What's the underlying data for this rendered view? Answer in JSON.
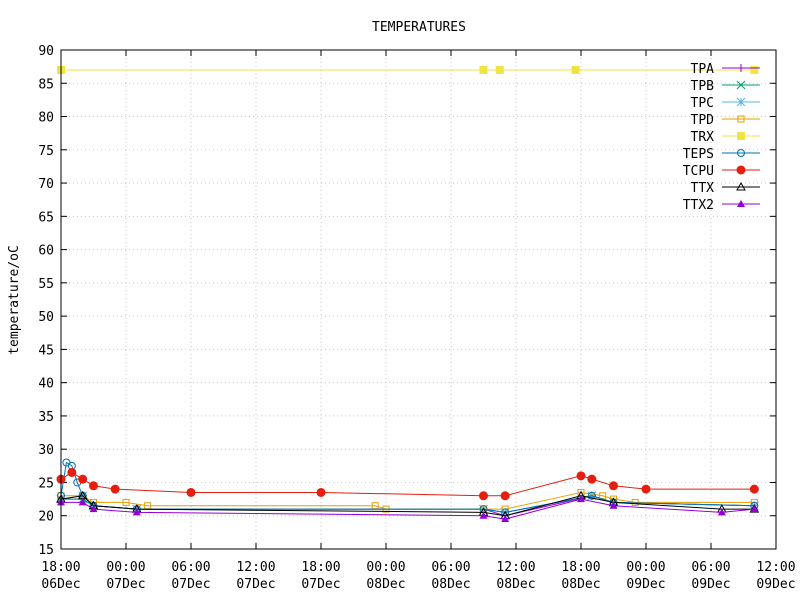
{
  "chart_data": {
    "type": "line",
    "title": "TEMPERATURES",
    "xlabel": "",
    "ylabel": "temperature/oC",
    "ylim": [
      15,
      90
    ],
    "yticks": [
      15,
      20,
      25,
      30,
      35,
      40,
      45,
      50,
      55,
      60,
      65,
      70,
      75,
      80,
      85,
      90
    ],
    "xlim": [
      "2023-12-06 18:00",
      "2023-12-09 12:00"
    ],
    "xticks": [
      {
        "time": "06Dec 18:00",
        "line1": "18:00",
        "line2": "06Dec"
      },
      {
        "time": "07Dec 00:00",
        "line1": "00:00",
        "line2": "07Dec"
      },
      {
        "time": "07Dec 06:00",
        "line1": "06:00",
        "line2": "07Dec"
      },
      {
        "time": "07Dec 12:00",
        "line1": "12:00",
        "line2": "07Dec"
      },
      {
        "time": "07Dec 18:00",
        "line1": "18:00",
        "line2": "07Dec"
      },
      {
        "time": "08Dec 00:00",
        "line1": "00:00",
        "line2": "08Dec"
      },
      {
        "time": "08Dec 06:00",
        "line1": "06:00",
        "line2": "08Dec"
      },
      {
        "time": "08Dec 12:00",
        "line1": "12:00",
        "line2": "08Dec"
      },
      {
        "time": "08Dec 18:00",
        "line1": "18:00",
        "line2": "08Dec"
      },
      {
        "time": "09Dec 00:00",
        "line1": "00:00",
        "line2": "09Dec"
      },
      {
        "time": "09Dec 06:00",
        "line1": "06:00",
        "line2": "09Dec"
      },
      {
        "time": "09Dec 12:00",
        "line1": "12:00",
        "line2": "09Dec"
      }
    ],
    "grid": true,
    "legend": "top-right",
    "series": [
      {
        "name": "TPA",
        "color": "#9400d3",
        "marker": "plus",
        "points": [
          [
            "06Dec 18:00",
            22.5
          ],
          [
            "06Dec 20:00",
            22.5
          ],
          [
            "06Dec 21:00",
            21.5
          ],
          [
            "07Dec 01:00",
            21.0
          ],
          [
            "08Dec 09:00",
            21.0
          ],
          [
            "08Dec 11:00",
            20.0
          ],
          [
            "08Dec 19:00",
            23.0
          ],
          [
            "08Dec 21:00",
            22.0
          ],
          [
            "09Dec 10:00",
            21.5
          ]
        ]
      },
      {
        "name": "TPB",
        "color": "#009e73",
        "marker": "x",
        "points": [
          [
            "06Dec 18:00",
            22.5
          ],
          [
            "06Dec 20:00",
            22.5
          ],
          [
            "06Dec 21:00",
            21.5
          ],
          [
            "07Dec 01:00",
            21.0
          ],
          [
            "08Dec 09:00",
            21.0
          ],
          [
            "08Dec 11:00",
            20.5
          ],
          [
            "08Dec 19:00",
            23.0
          ],
          [
            "08Dec 21:00",
            22.0
          ],
          [
            "09Dec 10:00",
            21.5
          ]
        ]
      },
      {
        "name": "TPC",
        "color": "#56b4e9",
        "marker": "star",
        "points": [
          [
            "06Dec 18:00",
            22.5
          ],
          [
            "06Dec 20:00",
            23.0
          ],
          [
            "06Dec 21:00",
            21.5
          ],
          [
            "07Dec 01:00",
            21.0
          ],
          [
            "08Dec 09:00",
            21.0
          ],
          [
            "08Dec 11:00",
            20.5
          ],
          [
            "08Dec 19:00",
            23.0
          ],
          [
            "08Dec 21:00",
            22.0
          ],
          [
            "09Dec 10:00",
            21.5
          ]
        ]
      },
      {
        "name": "TPD",
        "color": "#e69f00",
        "marker": "square",
        "points": [
          [
            "06Dec 18:00",
            23.0
          ],
          [
            "06Dec 20:00",
            23.0
          ],
          [
            "06Dec 21:00",
            22.0
          ],
          [
            "07Dec 00:00",
            22.0
          ],
          [
            "07Dec 02:00",
            21.5
          ],
          [
            "07Dec 23:00",
            21.5
          ],
          [
            "08Dec 00:00",
            21.0
          ],
          [
            "08Dec 09:00",
            21.0
          ],
          [
            "08Dec 11:00",
            21.0
          ],
          [
            "08Dec 18:00",
            23.5
          ],
          [
            "08Dec 20:00",
            23.0
          ],
          [
            "08Dec 21:00",
            22.5
          ],
          [
            "08Dec 23:00",
            22.0
          ],
          [
            "09Dec 10:00",
            22.0
          ]
        ]
      },
      {
        "name": "TRX",
        "color": "#f0e442",
        "marker": "filled-square",
        "points": [
          [
            "06Dec 18:00",
            87.0
          ],
          [
            "08Dec 09:00",
            87.0
          ],
          [
            "08Dec 10:30",
            87.0
          ],
          [
            "08Dec 17:30",
            87.0
          ],
          [
            "09Dec 10:00",
            87.0
          ]
        ]
      },
      {
        "name": "TEPS",
        "color": "#0072b2",
        "marker": "circle",
        "points": [
          [
            "06Dec 18:00",
            23.0
          ],
          [
            "06Dec 18:30",
            28.0
          ],
          [
            "06Dec 19:00",
            27.5
          ],
          [
            "06Dec 19:30",
            25.0
          ],
          [
            "06Dec 20:00",
            23.0
          ],
          [
            "06Dec 21:00",
            21.5
          ],
          [
            "07Dec 01:00",
            21.0
          ],
          [
            "08Dec 09:00",
            21.0
          ],
          [
            "08Dec 11:00",
            20.5
          ],
          [
            "08Dec 19:00",
            23.0
          ],
          [
            "08Dec 21:00",
            22.0
          ],
          [
            "09Dec 10:00",
            21.5
          ]
        ]
      },
      {
        "name": "TCPU",
        "color": "#e51e10",
        "marker": "filled-circle",
        "points": [
          [
            "06Dec 18:00",
            25.5
          ],
          [
            "06Dec 19:00",
            26.5
          ],
          [
            "06Dec 20:00",
            25.5
          ],
          [
            "06Dec 21:00",
            24.5
          ],
          [
            "06Dec 23:00",
            24.0
          ],
          [
            "07Dec 06:00",
            23.5
          ],
          [
            "07Dec 18:00",
            23.5
          ],
          [
            "08Dec 09:00",
            23.0
          ],
          [
            "08Dec 11:00",
            23.0
          ],
          [
            "08Dec 18:00",
            26.0
          ],
          [
            "08Dec 19:00",
            25.5
          ],
          [
            "08Dec 21:00",
            24.5
          ],
          [
            "09Dec 00:00",
            24.0
          ],
          [
            "09Dec 10:00",
            24.0
          ]
        ]
      },
      {
        "name": "TTX",
        "color": "#000000",
        "marker": "triangle",
        "points": [
          [
            "06Dec 18:00",
            22.5
          ],
          [
            "06Dec 20:00",
            23.0
          ],
          [
            "06Dec 21:00",
            21.5
          ],
          [
            "07Dec 01:00",
            21.0
          ],
          [
            "08Dec 09:00",
            20.5
          ],
          [
            "08Dec 11:00",
            20.0
          ],
          [
            "08Dec 18:00",
            23.0
          ],
          [
            "08Dec 21:00",
            22.0
          ],
          [
            "09Dec 07:00",
            21.0
          ],
          [
            "09Dec 10:00",
            21.0
          ]
        ]
      },
      {
        "name": "TTX2",
        "color": "#9400d3",
        "marker": "filled-triangle",
        "points": [
          [
            "06Dec 18:00",
            22.0
          ],
          [
            "06Dec 20:00",
            22.0
          ],
          [
            "06Dec 21:00",
            21.0
          ],
          [
            "07Dec 01:00",
            20.5
          ],
          [
            "08Dec 09:00",
            20.0
          ],
          [
            "08Dec 11:00",
            19.5
          ],
          [
            "08Dec 18:00",
            22.5
          ],
          [
            "08Dec 21:00",
            21.5
          ],
          [
            "09Dec 07:00",
            20.5
          ],
          [
            "09Dec 10:00",
            21.0
          ]
        ]
      }
    ]
  }
}
